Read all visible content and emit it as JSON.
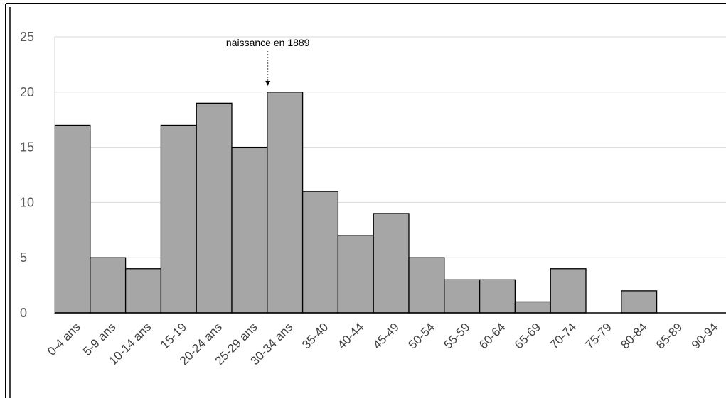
{
  "chart_data": {
    "type": "bar",
    "title": "",
    "xlabel": "",
    "ylabel": "",
    "categories": [
      "0-4 ans",
      "5-9 ans",
      "10-14 ans",
      "15-19",
      "20-24 ans",
      "25-29 ans",
      "30-34 ans",
      "35-40",
      "40-44",
      "45-49",
      "50-54",
      "55-59",
      "60-64",
      "65-69",
      "70-74",
      "75-79",
      "80-84",
      "85-89",
      "90-94"
    ],
    "values": [
      17,
      5,
      4,
      17,
      19,
      15,
      20,
      11,
      7,
      9,
      5,
      3,
      3,
      1,
      4,
      0,
      2,
      0,
      0
    ],
    "ylim": [
      0,
      25
    ],
    "yticks": [
      0,
      5,
      10,
      15,
      20,
      25
    ],
    "grid": true,
    "bar_color": "#a6a6a6",
    "bar_edge_color": "#000000",
    "annotation": {
      "text": "naissance en 1889",
      "category": "30-34 ans"
    }
  }
}
